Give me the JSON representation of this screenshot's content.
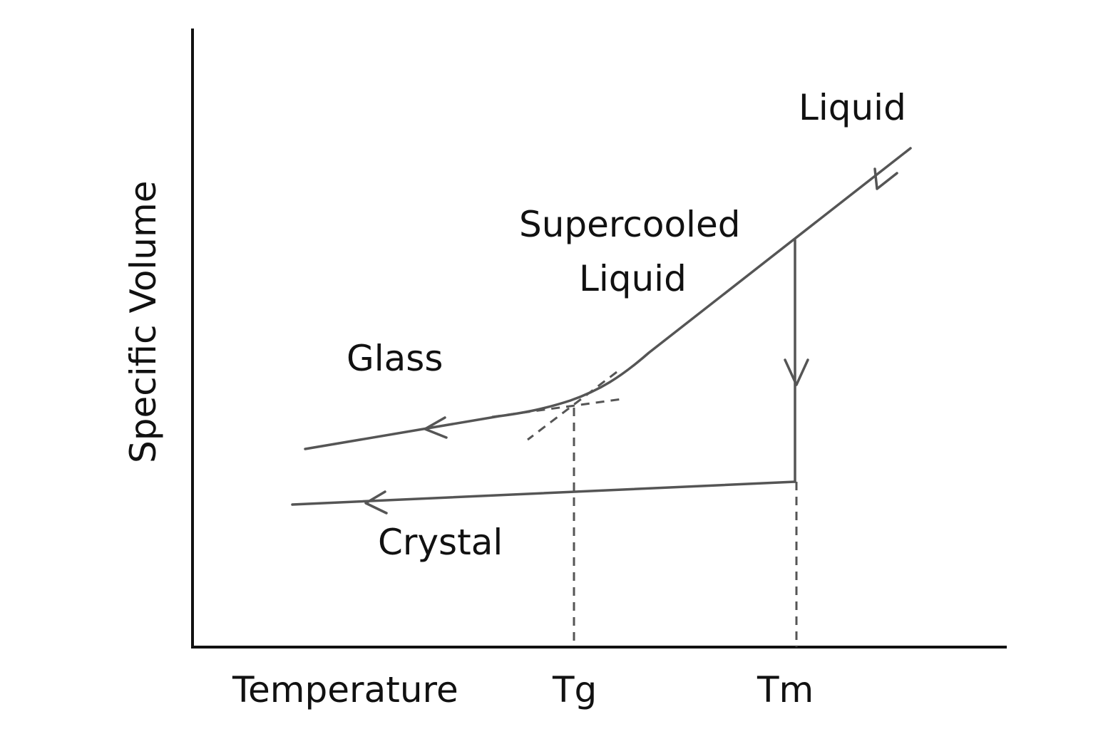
{
  "diagram": {
    "ylabel": "Specific Volume",
    "xlabel": "Temperature",
    "ticks": {
      "tg": "Tg",
      "tm": "Tm"
    },
    "regions": {
      "liquid": "Liquid",
      "supercooled_line1": "Supercooled",
      "supercooled_line2": "Liquid",
      "glass": "Glass",
      "crystal": "Crystal"
    },
    "colors": {
      "axis": "#111111",
      "curve": "#555555",
      "background": "#ffffff"
    }
  }
}
